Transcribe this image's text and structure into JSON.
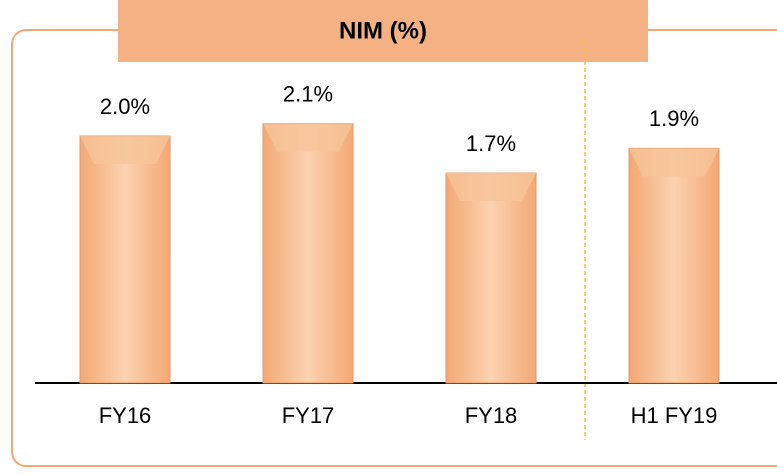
{
  "chart_data": {
    "type": "bar",
    "title": "NIM (%)",
    "categories": [
      "FY16",
      "FY17",
      "FY18",
      "H1 FY19"
    ],
    "values": [
      2.0,
      2.1,
      1.7,
      1.9
    ],
    "value_labels": [
      "2.0%",
      "2.1%",
      "1.7%",
      "1.9%"
    ],
    "color": "#f8c49a"
  }
}
